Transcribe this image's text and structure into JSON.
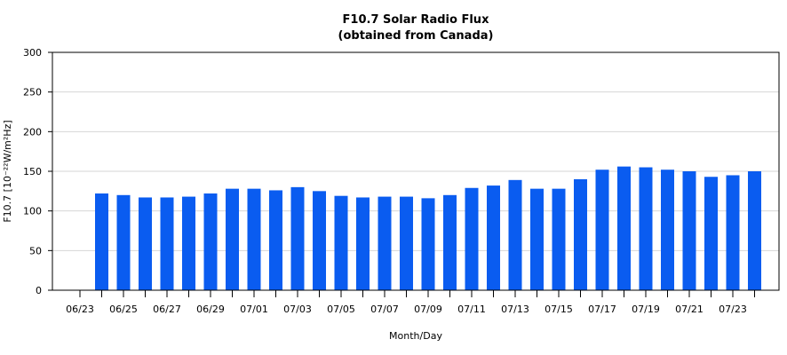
{
  "chart_data": {
    "type": "bar",
    "title": "F10.7 Solar Radio Flux",
    "subtitle": "(obtained from Canada)",
    "xlabel": "Month/Day",
    "ylabel": "F10.7 [10⁻²²W/m²Hz]",
    "ylim": [
      0,
      300
    ],
    "yticks": [
      0,
      50,
      100,
      150,
      200,
      250,
      300
    ],
    "grid": true,
    "bar_color": "#0a5cf0",
    "categories": [
      "06/23",
      "06/24",
      "06/25",
      "06/26",
      "06/27",
      "06/28",
      "06/29",
      "06/30",
      "07/01",
      "07/02",
      "07/03",
      "07/04",
      "07/05",
      "07/06",
      "07/07",
      "07/08",
      "07/09",
      "07/10",
      "07/11",
      "07/12",
      "07/13",
      "07/14",
      "07/15",
      "07/16",
      "07/17",
      "07/18",
      "07/19",
      "07/20",
      "07/21",
      "07/22",
      "07/23",
      "07/24"
    ],
    "xtick_labels": [
      "06/23",
      "06/25",
      "06/27",
      "06/29",
      "07/01",
      "07/03",
      "07/05",
      "07/07",
      "07/09",
      "07/11",
      "07/13",
      "07/15",
      "07/17",
      "07/19",
      "07/21",
      "07/23"
    ],
    "values": [
      null,
      122,
      120,
      117,
      117,
      118,
      122,
      128,
      128,
      126,
      130,
      125,
      119,
      117,
      118,
      118,
      116,
      120,
      129,
      132,
      139,
      128,
      128,
      140,
      152,
      156,
      155,
      152,
      150,
      143,
      145,
      150
    ]
  }
}
